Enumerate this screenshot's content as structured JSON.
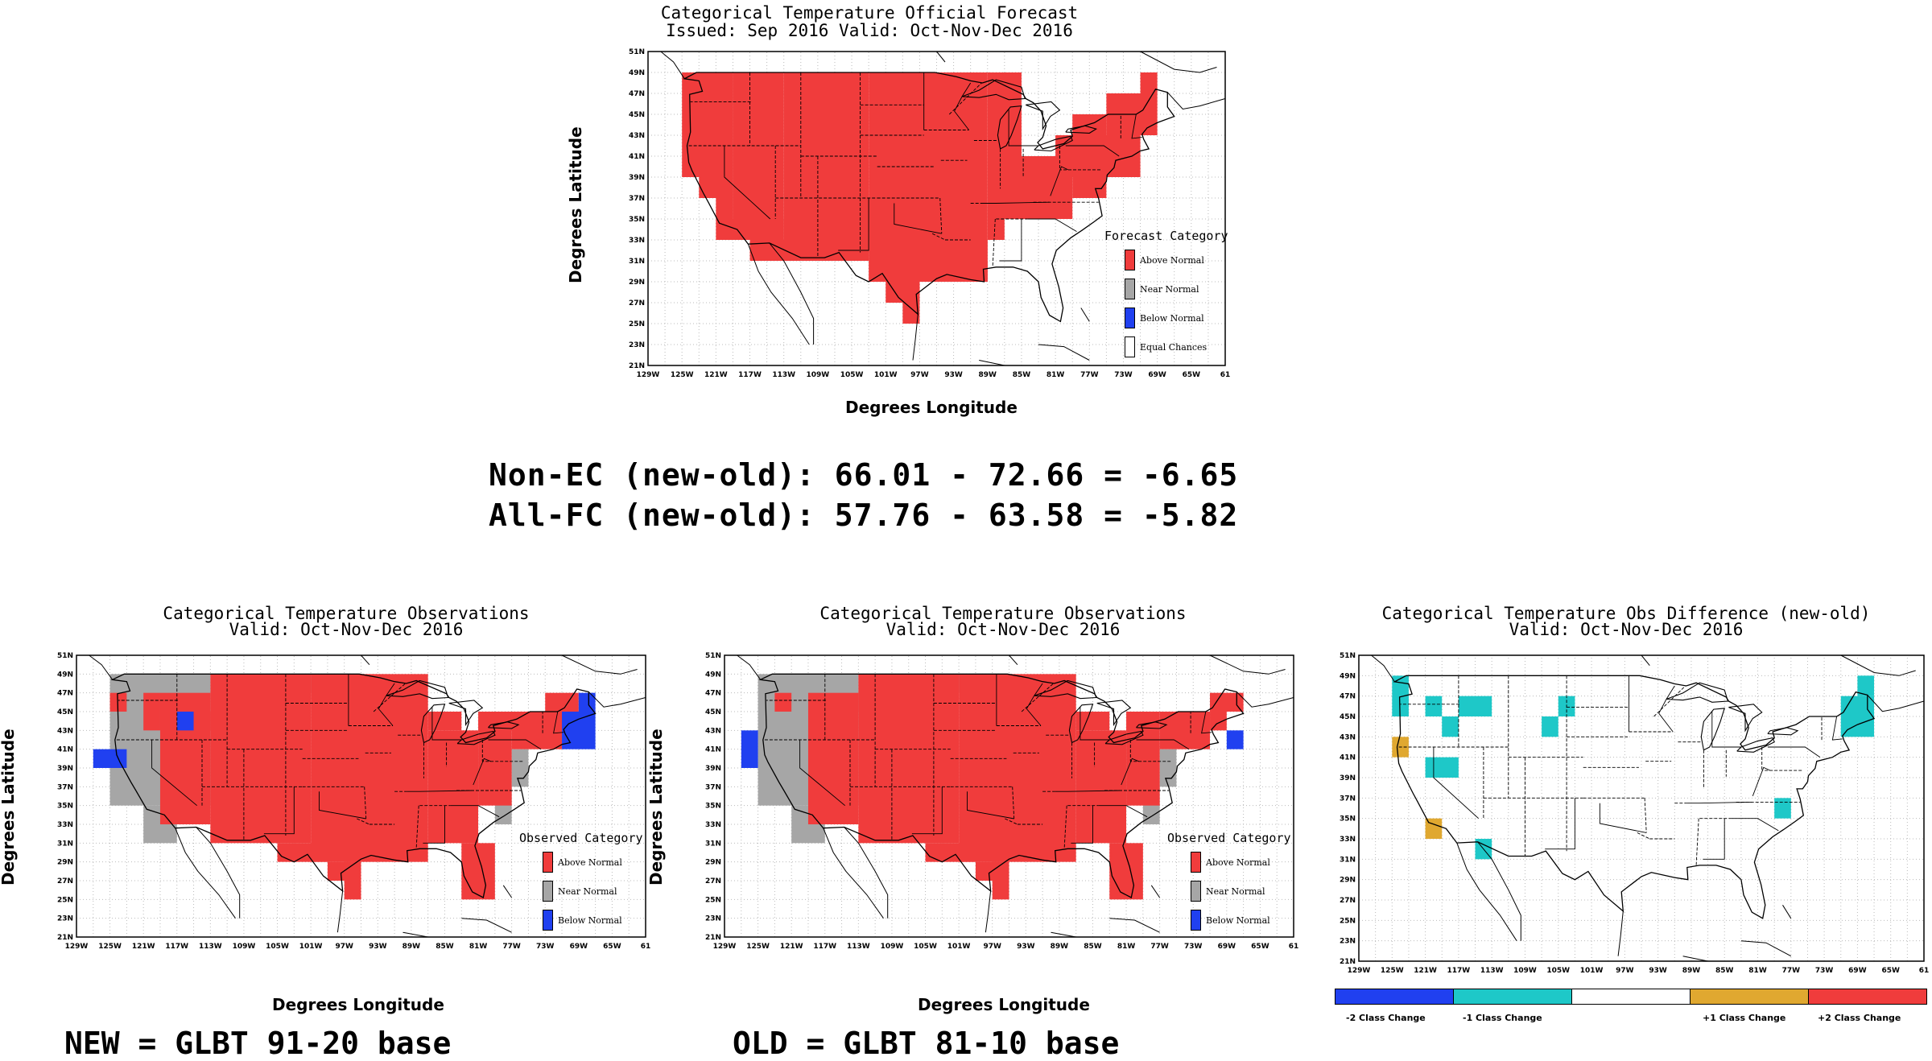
{
  "colors": {
    "above": "#f03c3c",
    "near": "#a6a6a6",
    "below": "#2040f0",
    "equal": "#ffffff",
    "minus2": "#2040f0",
    "minus1": "#1ec8c8",
    "zero": "#ffffff",
    "plus1": "#e0a830",
    "plus2": "#f03c3c"
  },
  "axes": {
    "xlabel": "Degrees Longitude",
    "ylabel": "Degrees Latitude",
    "lon_ticks": [
      "129W",
      "125W",
      "121W",
      "117W",
      "113W",
      "109W",
      "105W",
      "101W",
      "97W",
      "93W",
      "89W",
      "85W",
      "81W",
      "77W",
      "73W",
      "69W",
      "65W",
      "61"
    ],
    "lat_ticks": [
      "21N",
      "23N",
      "25N",
      "27N",
      "29N",
      "31N",
      "33N",
      "35N",
      "37N",
      "39N",
      "41N",
      "43N",
      "45N",
      "47N",
      "49N",
      "51N"
    ],
    "lon_range": [
      -129,
      -61
    ],
    "lat_range": [
      21,
      51
    ]
  },
  "forecast_panel": {
    "title": "Categorical Temperature Official Forecast",
    "subtitle": "Issued: Sep 2016 Valid: Oct-Nov-Dec 2016",
    "legend_title": "Forecast Category",
    "legend": [
      {
        "label": "Above Normal",
        "color": "#f03c3c"
      },
      {
        "label": "Near Normal",
        "color": "#a6a6a6"
      },
      {
        "label": "Below Normal",
        "color": "#2040f0"
      },
      {
        "label": "Equal Chances",
        "color": "#ffffff"
      }
    ]
  },
  "stats": {
    "line1": "Non-EC (new-old): 66.01 - 72.66 = -6.65",
    "line2": "All-FC (new-old): 57.76 - 63.58 = -5.82"
  },
  "obs_new_panel": {
    "title": "Categorical Temperature Observations",
    "subtitle": "Valid: Oct-Nov-Dec 2016",
    "legend_title": "Observed Category",
    "legend": [
      {
        "label": "Above Normal",
        "color": "#f03c3c"
      },
      {
        "label": "Near Normal",
        "color": "#a6a6a6"
      },
      {
        "label": "Below Normal",
        "color": "#2040f0"
      }
    ],
    "caption": "NEW = GLBT 91-20 base"
  },
  "obs_old_panel": {
    "title": "Categorical Temperature Observations",
    "subtitle": "Valid: Oct-Nov-Dec 2016",
    "legend_title": "Observed Category",
    "legend": [
      {
        "label": "Above Normal",
        "color": "#f03c3c"
      },
      {
        "label": "Near Normal",
        "color": "#a6a6a6"
      },
      {
        "label": "Below Normal",
        "color": "#2040f0"
      }
    ],
    "caption": "OLD = GLBT 81-10 base"
  },
  "diff_panel": {
    "title": "Categorical Temperature Obs Difference (new-old)",
    "subtitle": "Valid: Oct-Nov-Dec 2016",
    "colorbar": [
      {
        "label": "-2 Class Change",
        "color": "#2040f0"
      },
      {
        "label": "-1 Class Change",
        "color": "#1ec8c8"
      },
      {
        "label": "",
        "color": "#ffffff"
      },
      {
        "label": "+1 Class Change",
        "color": "#e0a830"
      },
      {
        "label": "+2 Class Change",
        "color": "#f03c3c"
      }
    ]
  }
}
